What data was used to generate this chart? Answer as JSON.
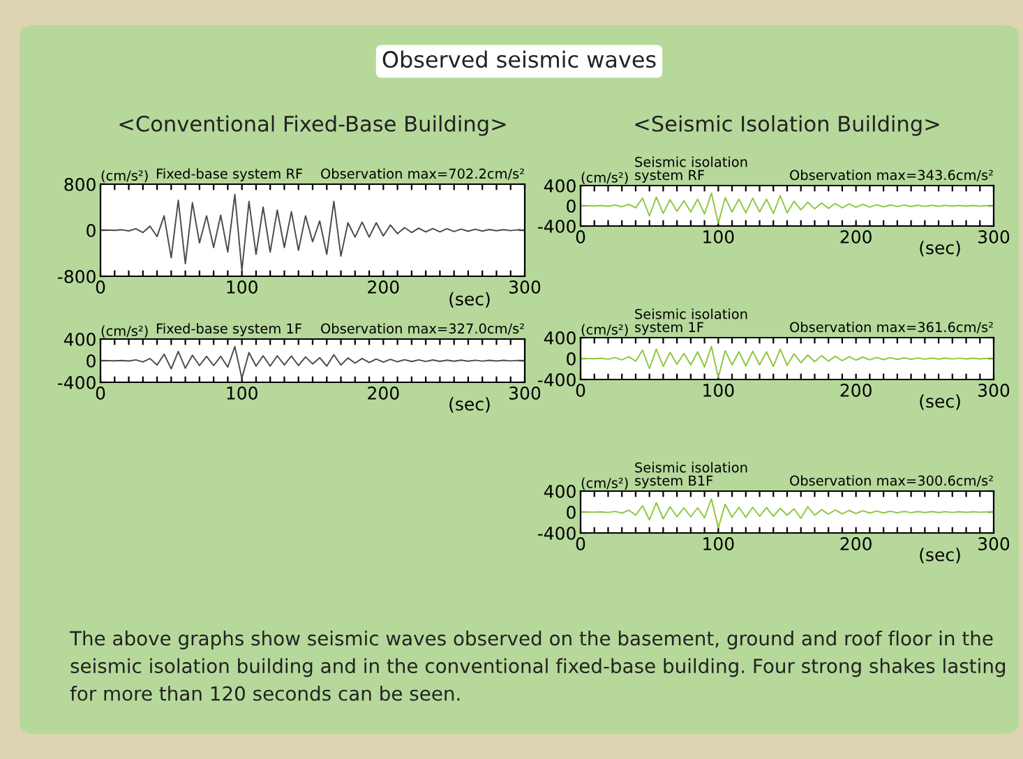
{
  "chart_data": [
    {
      "type": "other",
      "title": "Observed seismic waves",
      "annotations": [
        "The above graphs show seismic waves observed on the basement, ground and roof floor in the seismic isolation building and in the conventional fixed-base building. Four strong shakes lasting for more than 120 seconds can be seen."
      ]
    },
    {
      "type": "line",
      "subtitle": "<Conventional Fixed-Base Building>",
      "title": "Fixed-base system RF",
      "annotations": [
        "Observation max=702.2cm/s²"
      ],
      "xlabel": "(sec)",
      "ylabel": "(cm/s²)",
      "xlim": [
        0,
        300
      ],
      "ylim": [
        -800,
        800
      ],
      "xticks": [
        0,
        {
          "value": 10,
          "label": null
        },
        {
          "value": 20,
          "label": null
        },
        {
          "value": 30,
          "label": null
        },
        {
          "value": 40,
          "label": null
        },
        {
          "value": 50,
          "label": null
        },
        {
          "value": 60,
          "label": null
        },
        {
          "value": 70,
          "label": null
        },
        {
          "value": 80,
          "label": null
        },
        {
          "value": 90,
          "label": null
        },
        100,
        {
          "value": 110,
          "label": null
        },
        {
          "value": 120,
          "label": null
        },
        {
          "value": 130,
          "label": null
        },
        {
          "value": 140,
          "label": null
        },
        {
          "value": 150,
          "label": null
        },
        {
          "value": 160,
          "label": null
        },
        {
          "value": 170,
          "label": null
        },
        {
          "value": 180,
          "label": null
        },
        {
          "value": 190,
          "label": null
        },
        200,
        {
          "value": 210,
          "label": null
        },
        {
          "value": 220,
          "label": null
        },
        {
          "value": 230,
          "label": null
        },
        {
          "value": 240,
          "label": null
        },
        {
          "value": 250,
          "label": null
        },
        {
          "value": 260,
          "label": null
        },
        {
          "value": 270,
          "label": null
        },
        {
          "value": 280,
          "label": null
        },
        {
          "value": 290,
          "label": null
        },
        300
      ],
      "yticks": [
        -800,
        0,
        800
      ],
      "x": [
        0,
        5,
        10,
        15,
        20,
        25,
        30,
        35,
        40,
        45,
        50,
        55,
        60,
        65,
        70,
        75,
        80,
        85,
        90,
        95,
        100,
        105,
        110,
        115,
        120,
        125,
        130,
        135,
        140,
        145,
        150,
        155,
        160,
        165,
        170,
        175,
        180,
        185,
        190,
        195,
        200,
        205,
        210,
        215,
        220,
        225,
        230,
        235,
        240,
        245,
        250,
        255,
        260,
        265,
        270,
        275,
        280,
        285,
        290,
        295,
        300
      ],
      "series": [
        {
          "color": "#4a4a4a",
          "values": [
            0,
            2,
            -3,
            8,
            -12,
            25,
            -40,
            70,
            -110,
            250,
            -480,
            520,
            -580,
            480,
            -220,
            250,
            -300,
            260,
            -380,
            620,
            -702.2,
            500,
            -420,
            400,
            -380,
            350,
            -300,
            320,
            -350,
            250,
            -200,
            160,
            -420,
            500,
            -450,
            130,
            -120,
            140,
            -120,
            130,
            -100,
            90,
            -60,
            45,
            -40,
            35,
            -30,
            30,
            -28,
            25,
            -22,
            20,
            -18,
            16,
            -15,
            12,
            -10,
            10,
            -8,
            8,
            -5
          ]
        }
      ]
    },
    {
      "type": "line",
      "title": "Fixed-base system 1F",
      "annotations": [
        "Observation max=327.0cm/s²"
      ],
      "xlabel": "(sec)",
      "ylabel": "(cm/s²)",
      "xlim": [
        0,
        300
      ],
      "ylim": [
        -400,
        400
      ],
      "xticks": [
        0,
        {
          "value": 10,
          "label": null
        },
        {
          "value": 20,
          "label": null
        },
        {
          "value": 30,
          "label": null
        },
        {
          "value": 40,
          "label": null
        },
        {
          "value": 50,
          "label": null
        },
        {
          "value": 60,
          "label": null
        },
        {
          "value": 70,
          "label": null
        },
        {
          "value": 80,
          "label": null
        },
        {
          "value": 90,
          "label": null
        },
        100,
        {
          "value": 110,
          "label": null
        },
        {
          "value": 120,
          "label": null
        },
        {
          "value": 130,
          "label": null
        },
        {
          "value": 140,
          "label": null
        },
        {
          "value": 150,
          "label": null
        },
        {
          "value": 160,
          "label": null
        },
        {
          "value": 170,
          "label": null
        },
        {
          "value": 180,
          "label": null
        },
        {
          "value": 190,
          "label": null
        },
        200,
        {
          "value": 210,
          "label": null
        },
        {
          "value": 220,
          "label": null
        },
        {
          "value": 230,
          "label": null
        },
        {
          "value": 240,
          "label": null
        },
        {
          "value": 250,
          "label": null
        },
        {
          "value": 260,
          "label": null
        },
        {
          "value": 270,
          "label": null
        },
        {
          "value": 280,
          "label": null
        },
        {
          "value": 290,
          "label": null
        },
        300
      ],
      "yticks": [
        -400,
        0,
        400
      ],
      "x": [
        0,
        5,
        10,
        15,
        20,
        25,
        30,
        35,
        40,
        45,
        50,
        55,
        60,
        65,
        70,
        75,
        80,
        85,
        90,
        95,
        100,
        105,
        110,
        115,
        120,
        125,
        130,
        135,
        140,
        145,
        150,
        155,
        160,
        165,
        170,
        175,
        180,
        185,
        190,
        195,
        200,
        205,
        210,
        215,
        220,
        225,
        230,
        235,
        240,
        245,
        250,
        255,
        260,
        265,
        270,
        275,
        280,
        285,
        290,
        295,
        300
      ],
      "series": [
        {
          "color": "#4a4a4a",
          "values": [
            0,
            1,
            -2,
            4,
            -6,
            15,
            -25,
            40,
            -80,
            120,
            -150,
            170,
            -140,
            100,
            -90,
            80,
            -90,
            80,
            -120,
            260,
            -327.0,
            150,
            -100,
            90,
            -100,
            90,
            -80,
            85,
            -90,
            70,
            -60,
            55,
            -100,
            110,
            -80,
            50,
            -45,
            40,
            -35,
            30,
            -28,
            25,
            -20,
            18,
            -16,
            15,
            -14,
            12,
            -12,
            10,
            -10,
            10,
            -9,
            8,
            -8,
            7,
            -6,
            6,
            -5,
            5,
            -4
          ]
        }
      ]
    },
    {
      "type": "line",
      "subtitle": "<Seismic Isolation Building>",
      "title": "Seismic isolation\nsystem RF",
      "annotations": [
        "Observation max=343.6cm/s²"
      ],
      "xlabel": "(sec)",
      "ylabel": "(cm/s²)",
      "xlim": [
        0,
        300
      ],
      "ylim": [
        -400,
        400
      ],
      "xticks": [
        0,
        {
          "value": 10,
          "label": null
        },
        {
          "value": 20,
          "label": null
        },
        {
          "value": 30,
          "label": null
        },
        {
          "value": 40,
          "label": null
        },
        {
          "value": 50,
          "label": null
        },
        {
          "value": 60,
          "label": null
        },
        {
          "value": 70,
          "label": null
        },
        {
          "value": 80,
          "label": null
        },
        {
          "value": 90,
          "label": null
        },
        100,
        {
          "value": 110,
          "label": null
        },
        {
          "value": 120,
          "label": null
        },
        {
          "value": 130,
          "label": null
        },
        {
          "value": 140,
          "label": null
        },
        {
          "value": 150,
          "label": null
        },
        {
          "value": 160,
          "label": null
        },
        {
          "value": 170,
          "label": null
        },
        {
          "value": 180,
          "label": null
        },
        {
          "value": 190,
          "label": null
        },
        200,
        {
          "value": 210,
          "label": null
        },
        {
          "value": 220,
          "label": null
        },
        {
          "value": 230,
          "label": null
        },
        {
          "value": 240,
          "label": null
        },
        {
          "value": 250,
          "label": null
        },
        {
          "value": 260,
          "label": null
        },
        {
          "value": 270,
          "label": null
        },
        {
          "value": 280,
          "label": null
        },
        {
          "value": 290,
          "label": null
        },
        300
      ],
      "yticks": [
        -400,
        0,
        400
      ],
      "x": [
        0,
        5,
        10,
        15,
        20,
        25,
        30,
        35,
        40,
        45,
        50,
        55,
        60,
        65,
        70,
        75,
        80,
        85,
        90,
        95,
        100,
        105,
        110,
        115,
        120,
        125,
        130,
        135,
        140,
        145,
        150,
        155,
        160,
        165,
        170,
        175,
        180,
        185,
        190,
        195,
        200,
        205,
        210,
        215,
        220,
        225,
        230,
        235,
        240,
        245,
        250,
        255,
        260,
        265,
        270,
        275,
        280,
        285,
        290,
        295,
        300
      ],
      "series": [
        {
          "color": "#8dc63f",
          "values": [
            0,
            2,
            -3,
            6,
            -10,
            15,
            -20,
            30,
            -40,
            150,
            -200,
            170,
            -150,
            120,
            -110,
            100,
            -120,
            130,
            -160,
            250,
            -343.6,
            160,
            -120,
            130,
            -140,
            150,
            -120,
            130,
            -150,
            200,
            -140,
            90,
            -80,
            70,
            -60,
            55,
            -50,
            45,
            -40,
            35,
            -30,
            30,
            -25,
            22,
            -20,
            18,
            -16,
            15,
            -14,
            12,
            -12,
            10,
            -10,
            9,
            -8,
            8,
            -7,
            6,
            -6,
            5,
            -5
          ]
        }
      ]
    },
    {
      "type": "line",
      "title": "Seismic isolation\nsystem 1F",
      "annotations": [
        "Observation max=361.6cm/s²"
      ],
      "xlabel": "(sec)",
      "ylabel": "(cm/s²)",
      "xlim": [
        0,
        300
      ],
      "ylim": [
        -400,
        400
      ],
      "xticks": [
        0,
        {
          "value": 10,
          "label": null
        },
        {
          "value": 20,
          "label": null
        },
        {
          "value": 30,
          "label": null
        },
        {
          "value": 40,
          "label": null
        },
        {
          "value": 50,
          "label": null
        },
        {
          "value": 60,
          "label": null
        },
        {
          "value": 70,
          "label": null
        },
        {
          "value": 80,
          "label": null
        },
        {
          "value": 90,
          "label": null
        },
        100,
        {
          "value": 110,
          "label": null
        },
        {
          "value": 120,
          "label": null
        },
        {
          "value": 130,
          "label": null
        },
        {
          "value": 140,
          "label": null
        },
        {
          "value": 150,
          "label": null
        },
        {
          "value": 160,
          "label": null
        },
        {
          "value": 170,
          "label": null
        },
        {
          "value": 180,
          "label": null
        },
        {
          "value": 190,
          "label": null
        },
        200,
        {
          "value": 210,
          "label": null
        },
        {
          "value": 220,
          "label": null
        },
        {
          "value": 230,
          "label": null
        },
        {
          "value": 240,
          "label": null
        },
        {
          "value": 250,
          "label": null
        },
        {
          "value": 260,
          "label": null
        },
        {
          "value": 270,
          "label": null
        },
        {
          "value": 280,
          "label": null
        },
        {
          "value": 290,
          "label": null
        },
        300
      ],
      "yticks": [
        -400,
        0,
        400
      ],
      "x": [
        0,
        5,
        10,
        15,
        20,
        25,
        30,
        35,
        40,
        45,
        50,
        55,
        60,
        65,
        70,
        75,
        80,
        85,
        90,
        95,
        100,
        105,
        110,
        115,
        120,
        125,
        130,
        135,
        140,
        145,
        150,
        155,
        160,
        165,
        170,
        175,
        180,
        185,
        190,
        195,
        200,
        205,
        210,
        215,
        220,
        225,
        230,
        235,
        240,
        245,
        250,
        255,
        260,
        265,
        270,
        275,
        280,
        285,
        290,
        295,
        300
      ],
      "series": [
        {
          "color": "#8dc63f",
          "values": [
            0,
            2,
            -3,
            6,
            -12,
            18,
            -25,
            35,
            -50,
            160,
            -190,
            180,
            -150,
            120,
            -110,
            100,
            -120,
            130,
            -160,
            230,
            -361.6,
            150,
            -120,
            130,
            -140,
            140,
            -120,
            130,
            -150,
            180,
            -130,
            90,
            -80,
            70,
            -60,
            55,
            -50,
            45,
            -40,
            35,
            -30,
            30,
            -25,
            22,
            -20,
            18,
            -16,
            15,
            -14,
            12,
            -12,
            10,
            -10,
            9,
            -8,
            8,
            -7,
            6,
            -6,
            5,
            -5
          ]
        }
      ]
    },
    {
      "type": "line",
      "title": "Seismic isolation\nsystem B1F",
      "annotations": [
        "Observation max=300.6cm/s²"
      ],
      "xlabel": "(sec)",
      "ylabel": "(cm/s²)",
      "xlim": [
        0,
        300
      ],
      "ylim": [
        -400,
        400
      ],
      "xticks": [
        0,
        {
          "value": 10,
          "label": null
        },
        {
          "value": 20,
          "label": null
        },
        {
          "value": 30,
          "label": null
        },
        {
          "value": 40,
          "label": null
        },
        {
          "value": 50,
          "label": null
        },
        {
          "value": 60,
          "label": null
        },
        {
          "value": 70,
          "label": null
        },
        {
          "value": 80,
          "label": null
        },
        {
          "value": 90,
          "label": null
        },
        100,
        {
          "value": 110,
          "label": null
        },
        {
          "value": 120,
          "label": null
        },
        {
          "value": 130,
          "label": null
        },
        {
          "value": 140,
          "label": null
        },
        {
          "value": 150,
          "label": null
        },
        {
          "value": 160,
          "label": null
        },
        {
          "value": 170,
          "label": null
        },
        {
          "value": 180,
          "label": null
        },
        {
          "value": 190,
          "label": null
        },
        200,
        {
          "value": 210,
          "label": null
        },
        {
          "value": 220,
          "label": null
        },
        {
          "value": 230,
          "label": null
        },
        {
          "value": 240,
          "label": null
        },
        {
          "value": 250,
          "label": null
        },
        {
          "value": 260,
          "label": null
        },
        {
          "value": 270,
          "label": null
        },
        {
          "value": 280,
          "label": null
        },
        {
          "value": 290,
          "label": null
        },
        300
      ],
      "yticks": [
        -400,
        0,
        400
      ],
      "x": [
        0,
        5,
        10,
        15,
        20,
        25,
        30,
        35,
        40,
        45,
        50,
        55,
        60,
        65,
        70,
        75,
        80,
        85,
        90,
        95,
        100,
        105,
        110,
        115,
        120,
        125,
        130,
        135,
        140,
        145,
        150,
        155,
        160,
        165,
        170,
        175,
        180,
        185,
        190,
        195,
        200,
        205,
        210,
        215,
        220,
        225,
        230,
        235,
        240,
        245,
        250,
        255,
        260,
        265,
        270,
        275,
        280,
        285,
        290,
        295,
        300
      ],
      "series": [
        {
          "color": "#8dc63f",
          "values": [
            0,
            1,
            -2,
            4,
            -8,
            12,
            -20,
            35,
            -60,
            120,
            -150,
            180,
            -130,
            100,
            -90,
            80,
            -90,
            80,
            -110,
            250,
            -300.6,
            150,
            -100,
            90,
            -100,
            90,
            -80,
            85,
            -80,
            70,
            -60,
            60,
            -120,
            100,
            -60,
            45,
            -40,
            40,
            -35,
            30,
            -28,
            25,
            -20,
            18,
            -16,
            15,
            -14,
            12,
            -12,
            10,
            -10,
            10,
            -9,
            8,
            -8,
            7,
            -6,
            6,
            -5,
            5,
            -4
          ]
        }
      ]
    }
  ]
}
